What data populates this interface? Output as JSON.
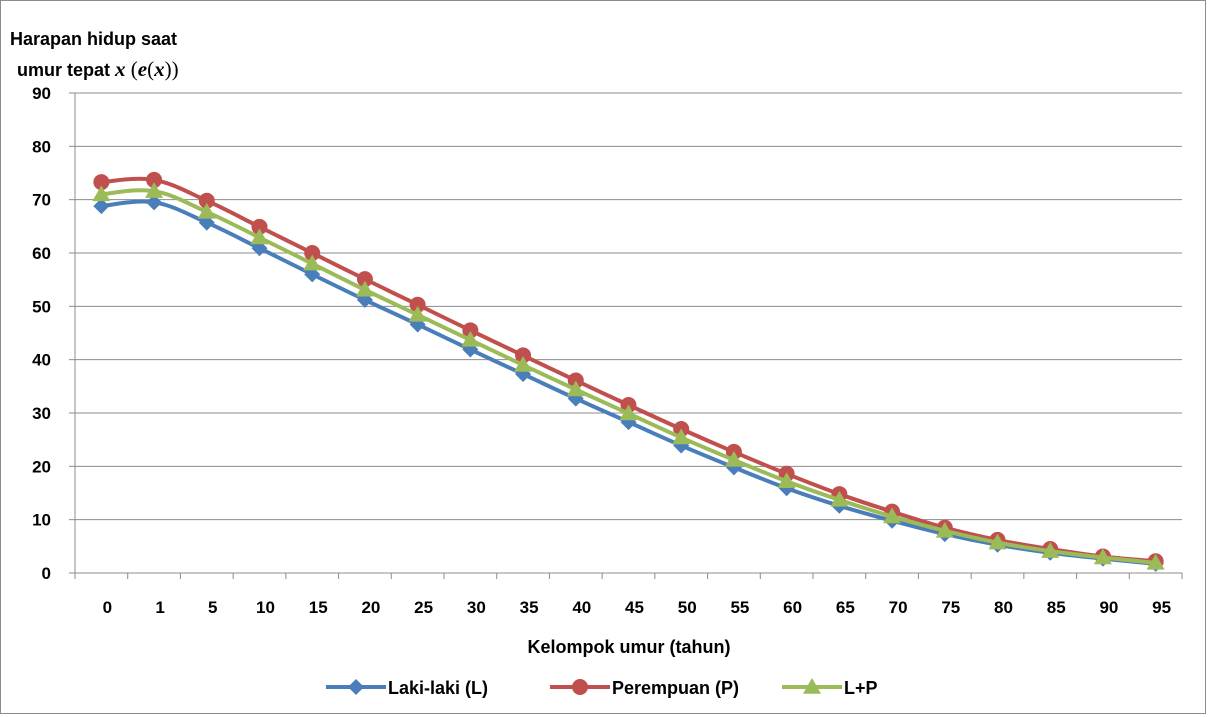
{
  "chart_data": {
    "type": "line",
    "title": "",
    "ylabel_line1": "Harapan hidup saat",
    "ylabel_line2_prefix": "umur tepat ",
    "ylabel_line2_var": "x",
    "ylabel_line2_open": " (",
    "ylabel_line2_e": "e",
    "ylabel_line2_paren_open": "(",
    "ylabel_line2_x": "x",
    "ylabel_line2_close": "))",
    "xlabel": "Kelompok umur (tahun)",
    "ylim": [
      0,
      90
    ],
    "yticks": [
      "0",
      "10",
      "20",
      "30",
      "40",
      "50",
      "60",
      "70",
      "80",
      "90"
    ],
    "grid": "horizontal",
    "legend_position": "bottom",
    "categories": [
      "0",
      "1",
      "5",
      "10",
      "15",
      "20",
      "25",
      "30",
      "35",
      "40",
      "45",
      "50",
      "55",
      "60",
      "65",
      "70",
      "75",
      "80",
      "85",
      "90",
      "95"
    ],
    "series": [
      {
        "name": "Laki-laki (L)",
        "color": "#4a7ebb",
        "marker": "diamond",
        "values": [
          68.8,
          69.5,
          65.7,
          60.9,
          56.0,
          51.2,
          46.6,
          41.9,
          37.3,
          32.7,
          28.3,
          23.9,
          19.8,
          15.9,
          12.6,
          9.8,
          7.3,
          5.3,
          3.8,
          2.7,
          1.7
        ]
      },
      {
        "name": "Perempuan (P)",
        "color": "#c0504d",
        "marker": "circle",
        "values": [
          73.3,
          73.7,
          69.8,
          64.9,
          60.0,
          55.1,
          50.3,
          45.5,
          40.8,
          36.1,
          31.5,
          27.0,
          22.7,
          18.6,
          14.8,
          11.5,
          8.5,
          6.2,
          4.5,
          3.1,
          2.2
        ]
      },
      {
        "name": "L+P",
        "color": "#9bbb59",
        "marker": "triangle",
        "values": [
          71.0,
          71.6,
          67.7,
          62.9,
          58.0,
          53.1,
          48.4,
          43.7,
          39.0,
          34.4,
          29.9,
          25.4,
          21.2,
          17.2,
          13.7,
          10.6,
          7.9,
          5.7,
          4.1,
          2.9,
          1.9
        ]
      }
    ]
  }
}
